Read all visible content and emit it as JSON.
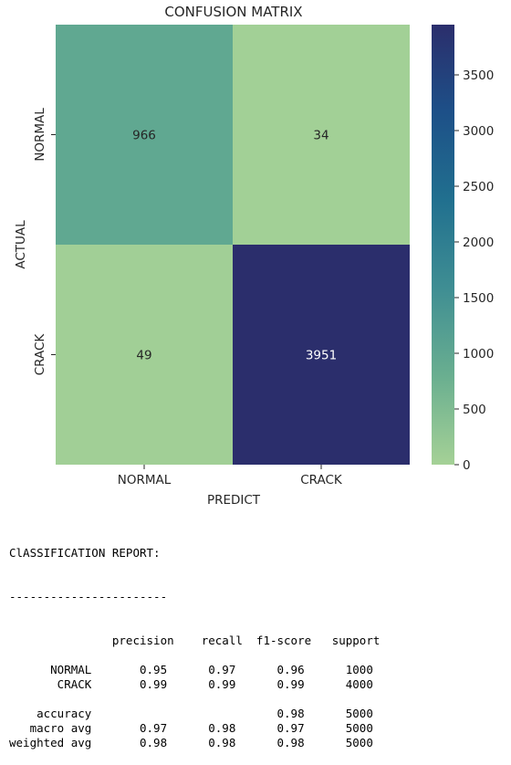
{
  "chart_data": {
    "type": "heatmap",
    "title": "CONFUSION MATRIX",
    "xlabel": "PREDICT",
    "ylabel": "ACTUAL",
    "x_categories": [
      "NORMAL",
      "CRACK"
    ],
    "y_categories": [
      "NORMAL",
      "CRACK"
    ],
    "values": [
      [
        966,
        34
      ],
      [
        49,
        3951
      ]
    ],
    "colorbar": {
      "min": 0,
      "max": 3951,
      "ticks": [
        0,
        500,
        1000,
        1500,
        2000,
        2500,
        3000,
        3500
      ],
      "colormap": "crest",
      "color_stops": [
        "#a5d196",
        "#6aaf90",
        "#3f8e93",
        "#21708f",
        "#1d5088",
        "#2b2e6c"
      ]
    }
  },
  "report": {
    "title": "ClASSIFICATION REPORT:",
    "rule": "-----------------------",
    "lines": [
      "               precision    recall  f1-score   support",
      "",
      "      NORMAL       0.95      0.97      0.96      1000",
      "       CRACK       0.99      0.99      0.99      4000",
      "",
      "    accuracy                           0.98      5000",
      "   macro avg       0.97      0.98      0.97      5000",
      "weighted avg       0.98      0.98      0.98      5000"
    ]
  }
}
